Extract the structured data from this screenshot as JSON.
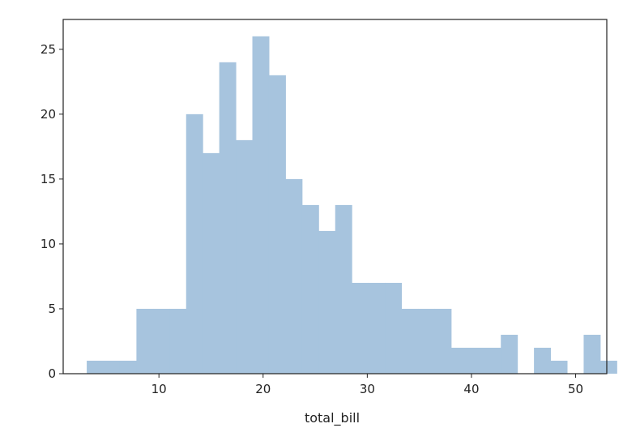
{
  "chart_data": {
    "type": "bar",
    "subtype": "histogram",
    "title": "",
    "xlabel": "total_bill",
    "ylabel": "",
    "xlim": [
      0.81,
      52.99
    ],
    "ylim": [
      0,
      27.3
    ],
    "grid": false,
    "bar_color": "#a7c4de",
    "x_ticks": [
      10,
      20,
      30,
      40,
      50
    ],
    "y_ticks": [
      0,
      5,
      10,
      15,
      20,
      25
    ],
    "bin_start": 3.07,
    "bin_width": 1.59,
    "counts": [
      1,
      1,
      1,
      5,
      5,
      5,
      20,
      17,
      24,
      18,
      26,
      23,
      15,
      13,
      11,
      13,
      7,
      7,
      7,
      5,
      5,
      5,
      2,
      2,
      2,
      3,
      0,
      2,
      1,
      0,
      3,
      1
    ]
  }
}
